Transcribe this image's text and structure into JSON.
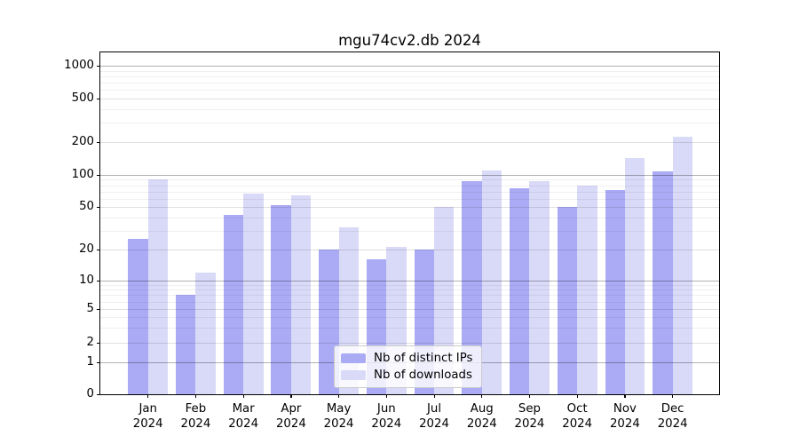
{
  "chart_data": {
    "type": "bar",
    "title": "mgu74cv2.db 2024",
    "categories": [
      "Jan",
      "Feb",
      "Mar",
      "Apr",
      "May",
      "Jun",
      "Jul",
      "Aug",
      "Sep",
      "Oct",
      "Nov",
      "Dec"
    ],
    "x_year": "2024",
    "series": [
      {
        "name": "Nb of distinct IPs",
        "color": "#aaaaf5",
        "values": [
          25,
          7,
          42,
          52,
          20,
          16,
          20,
          88,
          75,
          50,
          72,
          108
        ]
      },
      {
        "name": "Nb of downloads",
        "color": "#d9d9f8",
        "values": [
          90,
          12,
          67,
          64,
          32,
          21,
          50,
          110,
          87,
          80,
          143,
          222
        ]
      }
    ],
    "yticks": [
      0,
      1,
      2,
      5,
      10,
      20,
      50,
      100,
      200,
      500,
      1000
    ],
    "y_minor_gridlines": [
      3,
      4,
      6,
      7,
      8,
      9,
      30,
      40,
      60,
      70,
      80,
      90,
      300,
      400,
      600,
      700,
      800,
      900
    ],
    "yscale": "symlog",
    "ylim": [
      0,
      1300
    ],
    "grid": true,
    "legend_position": "lower center"
  }
}
